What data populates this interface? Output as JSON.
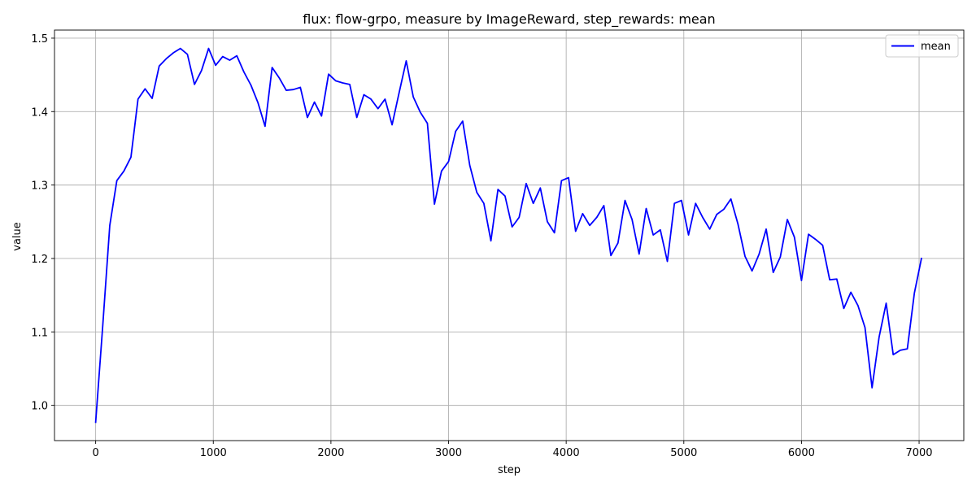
{
  "chart_data": {
    "type": "line",
    "title": "flux: flow-grpo, measure by ImageReward, step_rewards: mean",
    "xlabel": "step",
    "ylabel": "value",
    "xlim": [
      -350,
      7380
    ],
    "ylim": [
      0.952,
      1.511
    ],
    "xticks": [
      0,
      1000,
      2000,
      3000,
      4000,
      5000,
      6000,
      7000
    ],
    "yticks": [
      1.0,
      1.1,
      1.2,
      1.3,
      1.4,
      1.5
    ],
    "xtick_labels": [
      "0",
      "1000",
      "2000",
      "3000",
      "4000",
      "5000",
      "6000",
      "7000"
    ],
    "ytick_labels": [
      "1.0",
      "1.1",
      "1.2",
      "1.3",
      "1.4",
      "1.5"
    ],
    "grid": true,
    "legend_position": "top-right",
    "legend": [
      "mean"
    ],
    "series": [
      {
        "name": "mean",
        "color": "#0000ff",
        "x": [
          0,
          60,
          120,
          180,
          240,
          300,
          360,
          420,
          480,
          540,
          600,
          660,
          720,
          780,
          840,
          900,
          960,
          1020,
          1080,
          1140,
          1200,
          1260,
          1320,
          1380,
          1440,
          1500,
          1560,
          1620,
          1680,
          1740,
          1800,
          1860,
          1920,
          1980,
          2040,
          2100,
          2160,
          2220,
          2280,
          2340,
          2400,
          2460,
          2520,
          2580,
          2640,
          2700,
          2760,
          2820,
          2880,
          2940,
          3000,
          3060,
          3120,
          3180,
          3240,
          3300,
          3360,
          3420,
          3480,
          3540,
          3600,
          3660,
          3720,
          3780,
          3840,
          3900,
          3960,
          4020,
          4080,
          4140,
          4200,
          4260,
          4320,
          4380,
          4440,
          4500,
          4560,
          4620,
          4680,
          4740,
          4800,
          4860,
          4920,
          4980,
          5040,
          5100,
          5160,
          5220,
          5280,
          5340,
          5400,
          5460,
          5520,
          5580,
          5640,
          5700,
          5760,
          5820,
          5880,
          5940,
          6000,
          6060,
          6120,
          6180,
          6240,
          6300,
          6360,
          6420,
          6480,
          6540,
          6600,
          6660,
          6720,
          6780,
          6840,
          6900,
          6960,
          7020
        ],
        "values": [
          0.977,
          1.108,
          1.245,
          1.306,
          1.319,
          1.338,
          1.417,
          1.431,
          1.418,
          1.462,
          1.472,
          1.48,
          1.486,
          1.478,
          1.437,
          1.456,
          1.486,
          1.463,
          1.475,
          1.47,
          1.476,
          1.454,
          1.436,
          1.412,
          1.38,
          1.46,
          1.446,
          1.429,
          1.43,
          1.433,
          1.392,
          1.413,
          1.394,
          1.451,
          1.442,
          1.439,
          1.437,
          1.392,
          1.423,
          1.417,
          1.404,
          1.417,
          1.382,
          1.426,
          1.469,
          1.42,
          1.399,
          1.384,
          1.274,
          1.319,
          1.332,
          1.373,
          1.387,
          1.327,
          1.29,
          1.275,
          1.224,
          1.294,
          1.285,
          1.243,
          1.256,
          1.302,
          1.275,
          1.296,
          1.25,
          1.235,
          1.306,
          1.31,
          1.237,
          1.261,
          1.245,
          1.256,
          1.272,
          1.204,
          1.221,
          1.279,
          1.253,
          1.206,
          1.268,
          1.232,
          1.239,
          1.196,
          1.275,
          1.279,
          1.232,
          1.275,
          1.256,
          1.24,
          1.26,
          1.267,
          1.281,
          1.247,
          1.203,
          1.183,
          1.206,
          1.24,
          1.181,
          1.202,
          1.253,
          1.229,
          1.17,
          1.233,
          1.226,
          1.218,
          1.171,
          1.172,
          1.132,
          1.154,
          1.136,
          1.106,
          1.024,
          1.093,
          1.139,
          1.069,
          1.075,
          1.077,
          1.153,
          1.2
        ]
      }
    ]
  }
}
